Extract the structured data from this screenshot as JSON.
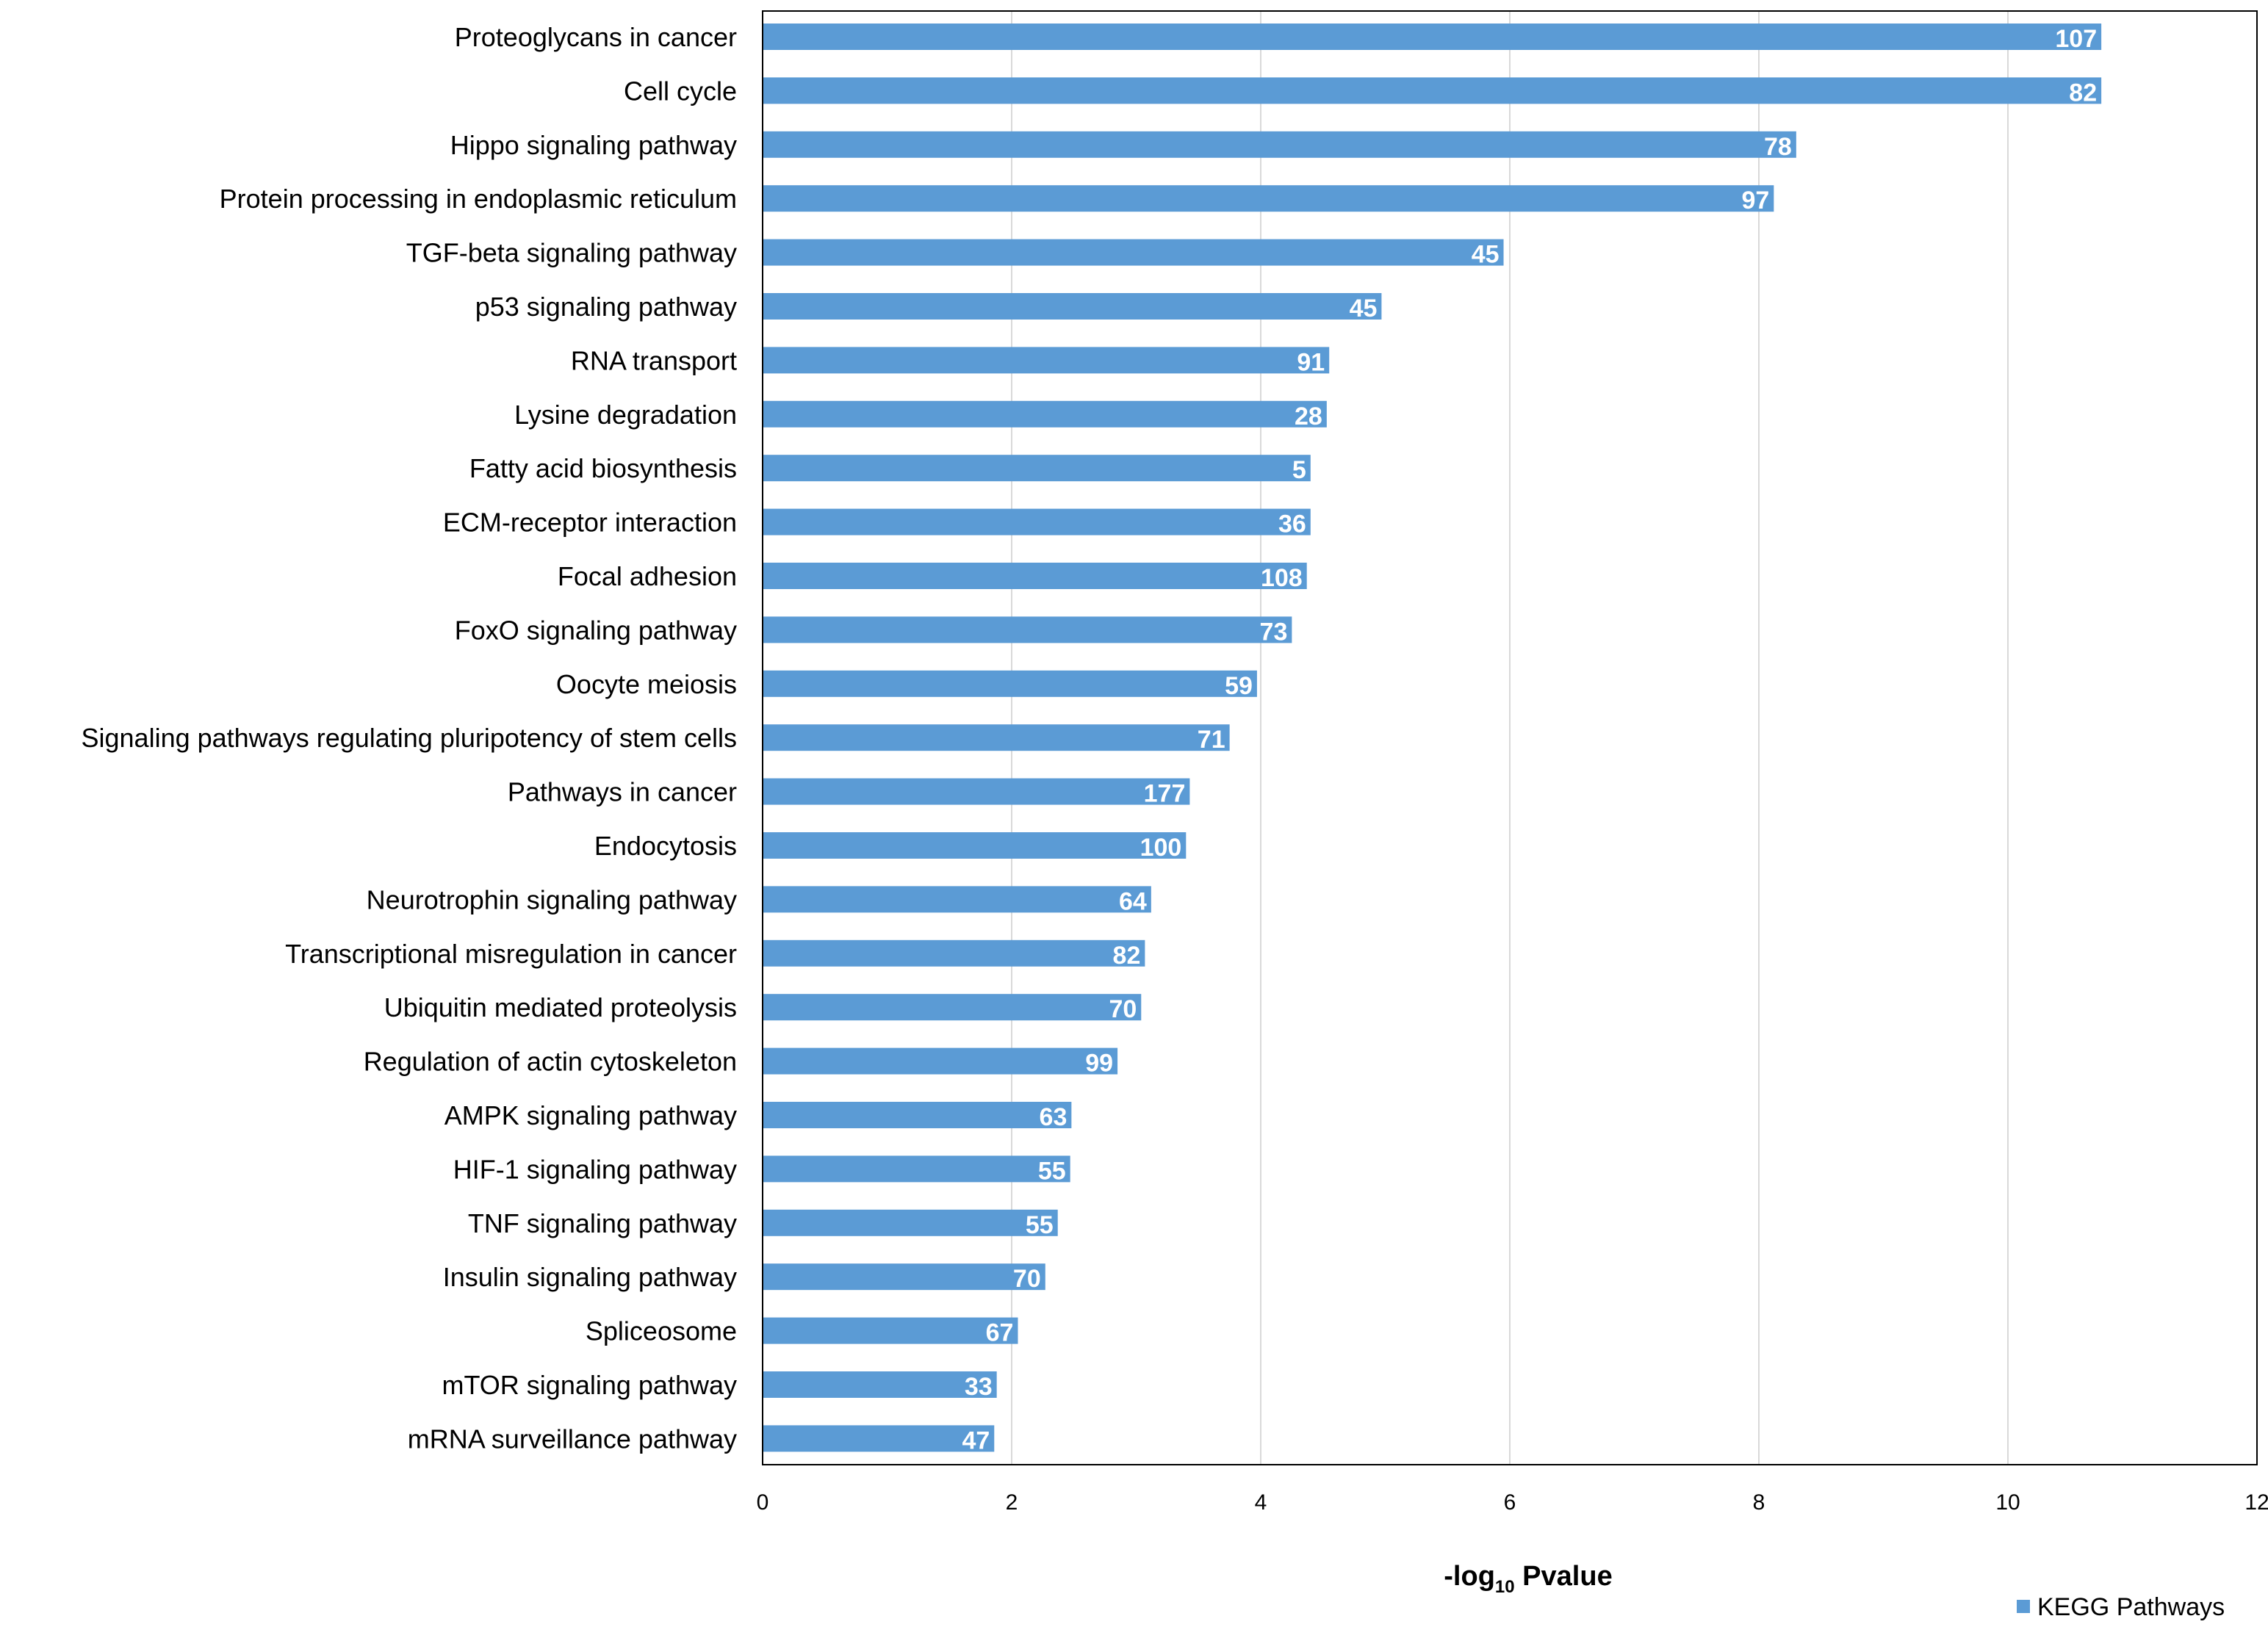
{
  "chart_data": {
    "type": "bar",
    "orientation": "horizontal",
    "xlabel_parts": {
      "prefix": "-log",
      "subscript": "10",
      "suffix": " Pvalue"
    },
    "xlim": [
      0,
      12
    ],
    "xticks": [
      0,
      2,
      4,
      6,
      8,
      10,
      12
    ],
    "grid": true,
    "legend_position": "bottom-right",
    "bar_color": "#5b9bd5",
    "series": [
      {
        "name": "KEGG Pathways",
        "categories": [
          "Proteoglycans in cancer",
          "Cell cycle",
          "Hippo signaling pathway",
          "Protein processing in endoplasmic reticulum",
          "TGF-beta signaling pathway",
          "p53 signaling pathway",
          "RNA transport",
          "Lysine degradation",
          "Fatty acid biosynthesis",
          "ECM-receptor interaction",
          "Focal adhesion",
          "FoxO signaling pathway",
          "Oocyte meiosis",
          "Signaling pathways regulating pluripotency of stem cells",
          "Pathways in cancer",
          "Endocytosis",
          "Neurotrophin signaling pathway",
          "Transcriptional misregulation in cancer",
          "Ubiquitin mediated proteolysis",
          "Regulation of actin cytoskeleton",
          "AMPK signaling pathway",
          "HIF-1 signaling pathway",
          "TNF signaling pathway",
          "Insulin signaling pathway",
          "Spliceosome",
          "mTOR signaling pathway",
          "mRNA surveillance pathway"
        ],
        "values": [
          10.75,
          10.75,
          8.3,
          8.12,
          5.95,
          4.97,
          4.55,
          4.53,
          4.4,
          4.4,
          4.37,
          4.25,
          3.97,
          3.75,
          3.43,
          3.4,
          3.12,
          3.07,
          3.04,
          2.85,
          2.48,
          2.47,
          2.37,
          2.27,
          2.05,
          1.88,
          1.86
        ],
        "data_labels": [
          "107",
          "82",
          "78",
          "97",
          "45",
          "45",
          "91",
          "28",
          "5",
          "36",
          "108",
          "73",
          "59",
          "71",
          "177",
          "100",
          "64",
          "82",
          "70",
          "99",
          "63",
          "55",
          "55",
          "70",
          "67",
          "33",
          "47"
        ]
      }
    ]
  }
}
